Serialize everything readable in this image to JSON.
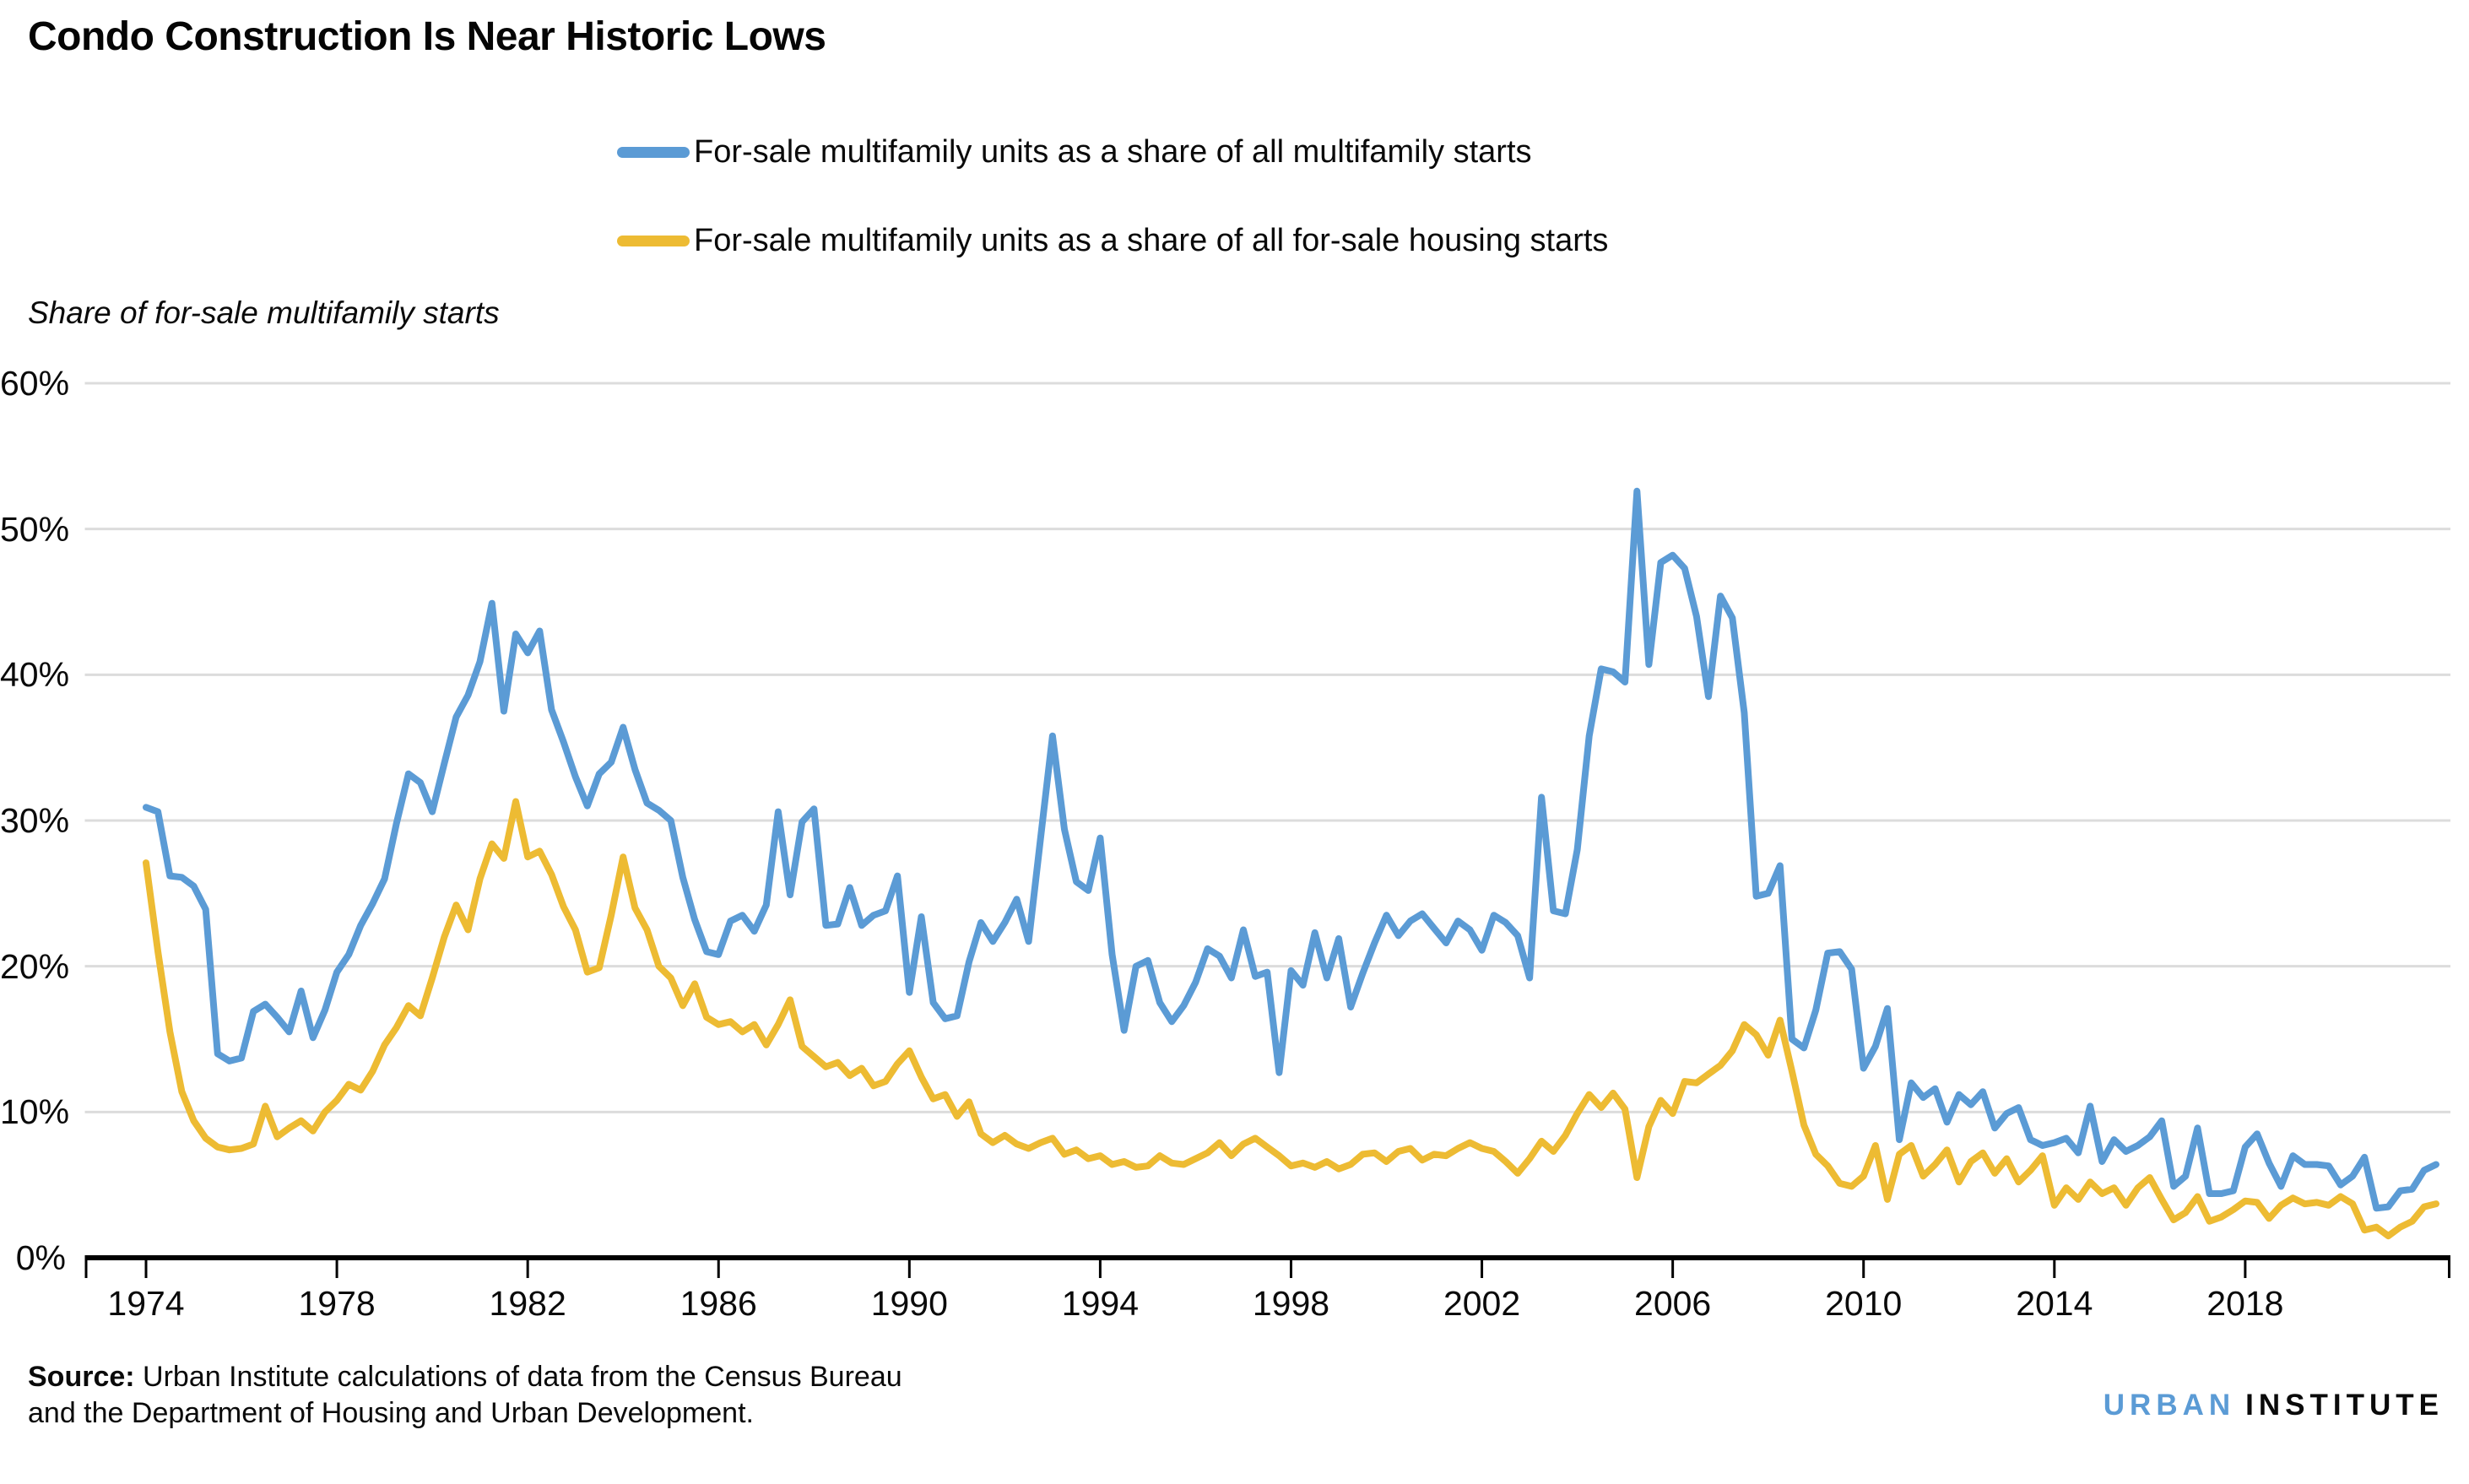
{
  "title": "Condo Construction Is Near Historic Lows",
  "y_axis_title": "Share of for-sale multifamily starts",
  "legend": {
    "items": [
      {
        "label": "For-sale multifamily units as a share of all multifamily starts",
        "color": "#5b9bd5"
      },
      {
        "label": "For-sale multifamily units as a share of all for-sale housing starts",
        "color": "#edbb33"
      }
    ]
  },
  "source": {
    "label": "Source:",
    "line1_rest": " Urban Institute calculations of data from the Census Bureau",
    "line2": "and the Department of Housing and Urban Development."
  },
  "logo": {
    "part1": "URBAN",
    "part2": "INSTITUTE",
    "part1_color": "#5b9bd5",
    "part2_color": "#0a0a0a"
  },
  "chart_data": {
    "type": "line",
    "title": "Condo Construction Is Near Historic Lows",
    "xlabel": "",
    "ylabel": "Share of for-sale multifamily starts",
    "frequency": "quarterly",
    "x_start": 1974.0,
    "x_step": 0.25,
    "xlim": [
      1974.0,
      2022.25
    ],
    "ylim": [
      0,
      60
    ],
    "grid": true,
    "legend_position": "top-center",
    "y_ticks": [
      0,
      10,
      20,
      30,
      40,
      50,
      60
    ],
    "y_tick_labels": [
      "0%",
      "10%",
      "20%",
      "30%",
      "40%",
      "50%",
      "60%"
    ],
    "x_tick_years": [
      1974,
      1978,
      1982,
      1986,
      1990,
      1994,
      1998,
      2002,
      2006,
      2010,
      2014,
      2018
    ],
    "x_tick_labels": [
      "1974",
      "1978",
      "1982",
      "1986",
      "1990",
      "1994",
      "1998",
      "2002",
      "2006",
      "2010",
      "2014",
      "2018"
    ],
    "series": [
      {
        "name": "For-sale multifamily units as a share of all multifamily starts",
        "color": "#5b9bd5",
        "values": [
          30.9,
          30.6,
          26.2,
          26.1,
          25.5,
          23.9,
          14.0,
          13.5,
          13.7,
          16.9,
          17.4,
          16.5,
          15.5,
          18.3,
          15.1,
          17.0,
          19.6,
          20.8,
          22.8,
          24.3,
          26.0,
          29.8,
          33.2,
          32.6,
          30.6,
          33.9,
          37.1,
          38.6,
          40.9,
          44.9,
          37.5,
          42.8,
          41.5,
          43.0,
          37.6,
          35.4,
          33.0,
          31.0,
          33.2,
          34.0,
          36.4,
          33.5,
          31.2,
          30.7,
          30.0,
          26.1,
          23.2,
          21.0,
          20.8,
          23.1,
          23.5,
          22.4,
          24.2,
          30.6,
          24.9,
          29.9,
          30.8,
          22.8,
          22.9,
          25.4,
          22.8,
          23.5,
          23.8,
          26.2,
          18.2,
          23.4,
          17.5,
          16.4,
          16.6,
          20.3,
          23.0,
          21.7,
          23.0,
          24.6,
          21.7,
          28.8,
          35.8,
          29.4,
          25.8,
          25.2,
          28.8,
          20.8,
          15.6,
          20.0,
          20.4,
          17.5,
          16.2,
          17.3,
          18.9,
          21.2,
          20.7,
          19.2,
          22.5,
          19.3,
          19.6,
          12.7,
          19.7,
          18.7,
          22.3,
          19.2,
          21.9,
          17.2,
          19.5,
          21.6,
          23.5,
          22.1,
          23.1,
          23.6,
          22.6,
          21.6,
          23.1,
          22.5,
          21.1,
          23.5,
          23.0,
          22.1,
          19.2,
          31.6,
          23.8,
          23.6,
          28.0,
          35.8,
          40.4,
          40.2,
          39.5,
          52.6,
          40.7,
          47.7,
          48.2,
          47.3,
          44.0,
          38.5,
          45.4,
          43.9,
          37.4,
          24.8,
          25.0,
          26.9,
          15.0,
          14.4,
          17.0,
          20.9,
          21.0,
          19.8,
          13.0,
          14.5,
          17.1,
          8.1,
          12.0,
          11.0,
          11.6,
          9.3,
          11.2,
          10.5,
          11.4,
          8.9,
          9.9,
          10.3,
          8.1,
          7.7,
          7.9,
          8.2,
          7.2,
          10.4,
          6.6,
          8.1,
          7.3,
          7.7,
          8.3,
          9.4,
          4.9,
          5.6,
          8.9,
          4.4,
          4.4,
          4.6,
          7.6,
          8.5,
          6.5,
          4.9,
          7.0,
          6.4,
          6.4,
          6.3,
          5.0,
          5.6,
          6.9,
          3.4,
          3.5,
          4.6,
          4.7,
          6.0,
          6.4
        ]
      },
      {
        "name": "For-sale multifamily units as a share of all for-sale housing starts",
        "color": "#edbb33",
        "values": [
          27.1,
          21.0,
          15.5,
          11.4,
          9.4,
          8.2,
          7.6,
          7.4,
          7.5,
          7.8,
          10.4,
          8.3,
          8.9,
          9.4,
          8.7,
          10.0,
          10.8,
          11.9,
          11.5,
          12.8,
          14.6,
          15.8,
          17.3,
          16.6,
          19.2,
          22.0,
          24.2,
          22.5,
          26.0,
          28.4,
          27.4,
          31.3,
          27.5,
          27.9,
          26.3,
          24.1,
          22.5,
          19.6,
          19.9,
          23.5,
          27.5,
          24.0,
          22.5,
          20.0,
          19.2,
          17.3,
          18.8,
          16.5,
          16.0,
          16.2,
          15.5,
          16.0,
          14.6,
          16.0,
          17.7,
          14.5,
          13.8,
          13.1,
          13.4,
          12.5,
          13.0,
          11.8,
          12.1,
          13.3,
          14.2,
          12.4,
          10.9,
          11.2,
          9.7,
          10.7,
          8.5,
          7.9,
          8.4,
          7.8,
          7.5,
          7.9,
          8.2,
          7.1,
          7.4,
          6.8,
          7.0,
          6.4,
          6.6,
          6.2,
          6.3,
          7.0,
          6.5,
          6.4,
          6.8,
          7.2,
          7.9,
          7.0,
          7.8,
          8.2,
          7.6,
          7.0,
          6.3,
          6.5,
          6.2,
          6.6,
          6.1,
          6.4,
          7.1,
          7.2,
          6.6,
          7.3,
          7.5,
          6.7,
          7.1,
          7.0,
          7.5,
          7.9,
          7.5,
          7.3,
          6.6,
          5.8,
          6.8,
          8.0,
          7.3,
          8.4,
          9.9,
          11.2,
          10.3,
          11.3,
          10.2,
          5.5,
          9.0,
          10.8,
          9.9,
          12.1,
          12.0,
          12.6,
          13.2,
          14.2,
          16.0,
          15.3,
          13.9,
          16.3,
          12.8,
          9.1,
          7.1,
          6.3,
          5.1,
          4.9,
          5.6,
          7.7,
          4.0,
          7.1,
          7.7,
          5.6,
          6.4,
          7.4,
          5.2,
          6.6,
          7.2,
          5.8,
          6.8,
          5.2,
          6.0,
          7.0,
          3.6,
          4.8,
          4.0,
          5.2,
          4.4,
          4.8,
          3.6,
          4.8,
          5.5,
          4.0,
          2.6,
          3.1,
          4.2,
          2.5,
          2.8,
          3.3,
          3.9,
          3.8,
          2.7,
          3.6,
          4.1,
          3.7,
          3.8,
          3.6,
          4.2,
          3.7,
          1.9,
          2.1,
          1.5,
          2.1,
          2.5,
          3.5,
          3.7
        ]
      }
    ]
  }
}
